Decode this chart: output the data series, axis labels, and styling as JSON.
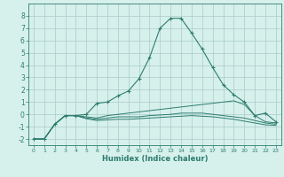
{
  "xlabel": "Humidex (Indice chaleur)",
  "x": [
    0,
    1,
    2,
    3,
    4,
    5,
    6,
    7,
    8,
    9,
    10,
    11,
    12,
    13,
    14,
    15,
    16,
    17,
    18,
    19,
    20,
    21,
    22,
    23
  ],
  "line1": [
    -2.0,
    -2.0,
    -0.8,
    -0.1,
    -0.1,
    -0.2,
    -0.3,
    -0.1,
    0.0,
    0.1,
    0.2,
    0.3,
    0.4,
    0.5,
    0.6,
    0.7,
    0.8,
    0.9,
    1.0,
    1.1,
    0.8,
    -0.1,
    -0.6,
    -0.7
  ],
  "line2": [
    -2.0,
    -2.0,
    -0.8,
    -0.1,
    -0.1,
    -0.3,
    -0.4,
    -0.3,
    -0.2,
    -0.2,
    -0.2,
    -0.1,
    -0.05,
    0.0,
    0.1,
    0.1,
    0.1,
    0.0,
    -0.1,
    -0.2,
    -0.3,
    -0.5,
    -0.7,
    -0.8
  ],
  "line3": [
    -2.0,
    -2.0,
    -0.8,
    -0.1,
    -0.1,
    -0.35,
    -0.5,
    -0.45,
    -0.4,
    -0.4,
    -0.35,
    -0.3,
    -0.25,
    -0.2,
    -0.15,
    -0.1,
    -0.15,
    -0.2,
    -0.3,
    -0.4,
    -0.55,
    -0.7,
    -0.85,
    -0.9
  ],
  "line_main": [
    -2.0,
    -2.0,
    -0.8,
    -0.1,
    -0.1,
    0.0,
    0.9,
    1.0,
    1.5,
    1.9,
    2.9,
    4.6,
    7.0,
    7.8,
    7.8,
    6.6,
    5.3,
    3.8,
    2.4,
    1.6,
    1.0,
    -0.1,
    0.1,
    -0.6
  ],
  "line_color": "#2d7d6e",
  "bg_color": "#d6f0ec",
  "grid_color": "#aaccc8",
  "ylim": [
    -2.5,
    9.0
  ],
  "xlim": [
    -0.5,
    23.5
  ],
  "yticks": [
    -2,
    -1,
    0,
    1,
    2,
    3,
    4,
    5,
    6,
    7,
    8
  ],
  "xticks": [
    0,
    1,
    2,
    3,
    4,
    5,
    6,
    7,
    8,
    9,
    10,
    11,
    12,
    13,
    14,
    15,
    16,
    17,
    18,
    19,
    20,
    21,
    22,
    23
  ]
}
